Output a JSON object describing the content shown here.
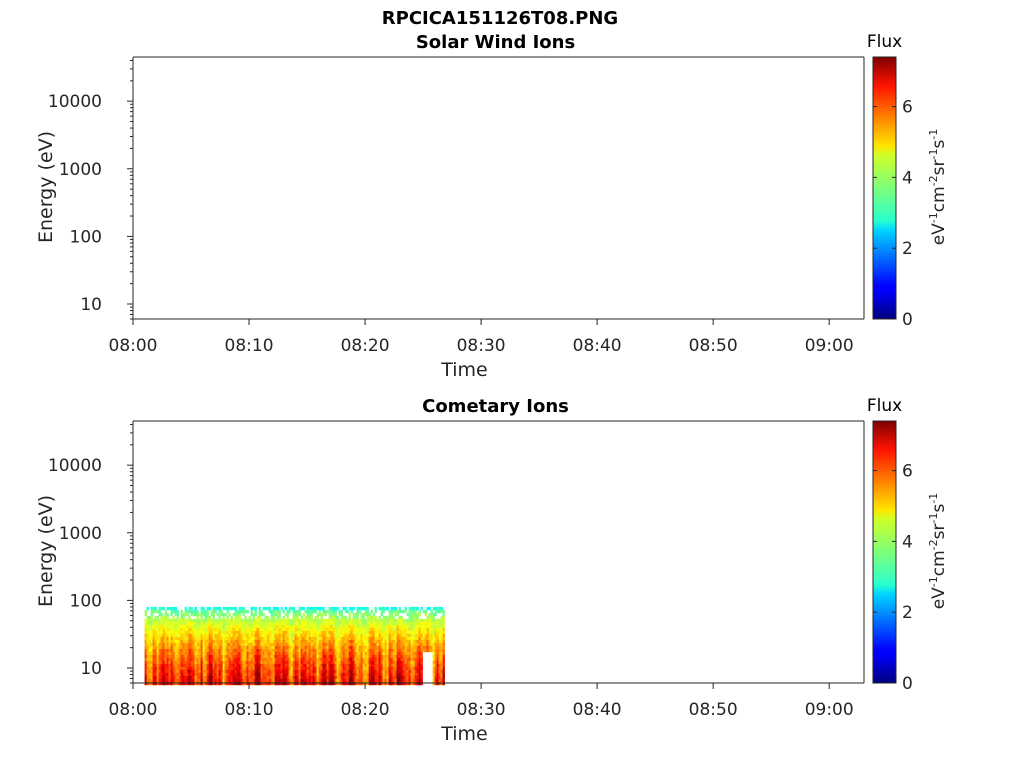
{
  "figure": {
    "title": "RPCICA151126T08.PNG",
    "colorbar_title": "Flux",
    "colorbar_label_base": "eV",
    "colorbar_label_parts": [
      "-1",
      "cm",
      "-2",
      "sr",
      "-1",
      "s",
      "-1"
    ]
  },
  "chart_data": [
    {
      "type": "heatmap",
      "title": "Solar Wind Ions",
      "xlabel": "Time",
      "ylabel": "Energy (eV)",
      "x_ticks": [
        "08:00",
        "08:10",
        "08:20",
        "08:30",
        "08:40",
        "08:50",
        "09:00"
      ],
      "xlim_minutes": [
        0,
        63
      ],
      "y_scale": "log",
      "y_ticks": [
        "10",
        "100",
        "1000",
        "10000"
      ],
      "ylim": [
        6,
        45000
      ],
      "colorbar": {
        "label": "Flux",
        "ticks": [
          "0",
          "2",
          "4",
          "6"
        ],
        "range": [
          0,
          7.4
        ],
        "colormap": "jet"
      },
      "data_regions": []
    },
    {
      "type": "heatmap",
      "title": "Cometary Ions",
      "xlabel": "Time",
      "ylabel": "Energy (eV)",
      "x_ticks": [
        "08:00",
        "08:10",
        "08:20",
        "08:30",
        "08:40",
        "08:50",
        "09:00"
      ],
      "xlim_minutes": [
        0,
        63
      ],
      "y_scale": "log",
      "y_ticks": [
        "10",
        "100",
        "1000",
        "10000"
      ],
      "ylim": [
        6,
        45000
      ],
      "colorbar": {
        "label": "Flux",
        "ticks": [
          "0",
          "2",
          "4",
          "6"
        ],
        "range": [
          0,
          7.4
        ],
        "colormap": "jet"
      },
      "data_regions": [
        {
          "t_start_min": 1.0,
          "t_end_min": 26.7,
          "energy_min_eV": 6,
          "energy_max_eV": 80,
          "flux_low_energy": 6.5,
          "flux_high_energy": 3.0,
          "note_hole": {
            "t_start_min": 24.8,
            "t_end_min": 25.7,
            "energy_max_eV": 20
          }
        }
      ]
    }
  ]
}
